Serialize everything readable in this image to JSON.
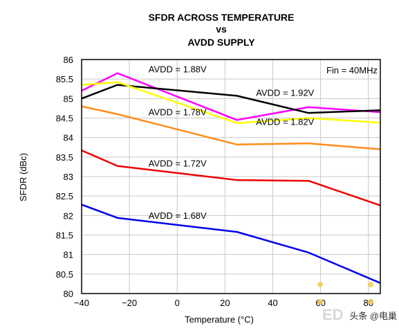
{
  "chart_data": {
    "type": "line",
    "title": [
      "SFDR ACROSS TEMPERATURE",
      "vs",
      "AVDD SUPPLY"
    ],
    "xlabel": "Temperature (°C)",
    "ylabel": "SFDR (dBc)",
    "xlim": [
      -40,
      85
    ],
    "ylim": [
      80,
      86
    ],
    "xticks": [
      -40,
      -20,
      0,
      20,
      40,
      60,
      80
    ],
    "yticks": [
      80,
      80.5,
      81,
      81.5,
      82,
      82.5,
      83,
      83.5,
      84,
      84.5,
      85,
      85.5,
      86
    ],
    "annotation": "Fin = 40MHz",
    "grid": true,
    "series": [
      {
        "name": "AVDD = 1.88V",
        "color": "#ff00ff",
        "x": [
          -40,
          -25,
          25,
          55,
          85
        ],
        "y": [
          85.2,
          85.65,
          84.45,
          84.78,
          84.65
        ]
      },
      {
        "name": "AVDD = 1.92V",
        "color": "#000000",
        "x": [
          -40,
          -25,
          25,
          55,
          85
        ],
        "y": [
          85.0,
          85.35,
          85.07,
          84.63,
          84.7
        ]
      },
      {
        "name": "AVDD = 1.82V",
        "color": "#ffff00",
        "x": [
          -40,
          -25,
          25,
          55,
          85
        ],
        "y": [
          85.35,
          85.42,
          84.37,
          84.5,
          84.38
        ]
      },
      {
        "name": "AVDD = 1.78V",
        "color": "#ff8c1a",
        "x": [
          -40,
          -25,
          25,
          55,
          85
        ],
        "y": [
          84.8,
          84.6,
          83.82,
          83.85,
          83.7
        ]
      },
      {
        "name": "AVDD = 1.72V",
        "color": "#ee0000",
        "x": [
          -40,
          -25,
          25,
          55,
          85
        ],
        "y": [
          83.67,
          83.27,
          82.91,
          82.89,
          82.26
        ]
      },
      {
        "name": "AVDD = 1.68V",
        "color": "#0000ee",
        "x": [
          -40,
          -25,
          25,
          55,
          85
        ],
        "y": [
          82.28,
          81.94,
          81.58,
          81.05,
          80.27
        ]
      }
    ]
  },
  "watermark": {
    "text": "头条 @电巢",
    "logo": "ED"
  }
}
